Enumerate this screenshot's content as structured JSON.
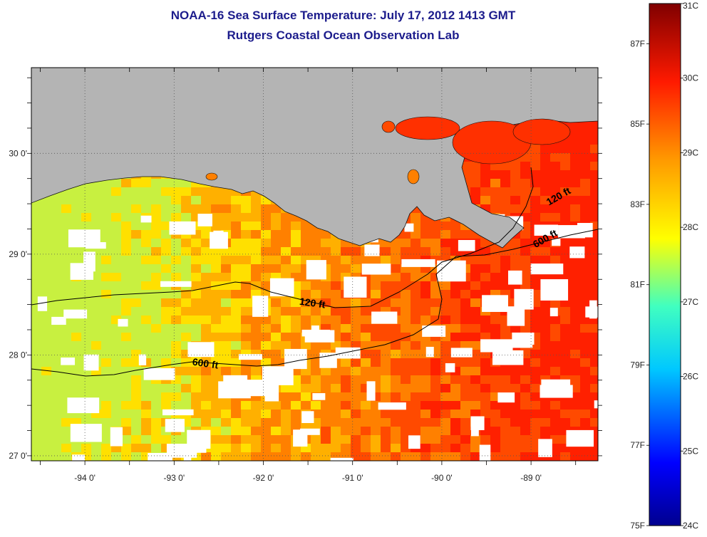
{
  "title": {
    "line1": "NOAA-16 Sea Surface Temperature:  July 17, 2012 1413 GMT",
    "line2": "Rutgers Coastal Ocean Observation Lab"
  },
  "map": {
    "lon_range": [
      -94.6,
      -88.25
    ],
    "lat_range": [
      26.95,
      30.85
    ],
    "lon_ticks": [
      {
        "value": -94,
        "label": "-94 0'"
      },
      {
        "value": -93,
        "label": "-93 0'"
      },
      {
        "value": -92,
        "label": "-92 0'"
      },
      {
        "value": -91,
        "label": "-91 0'"
      },
      {
        "value": -90,
        "label": "-90 0'"
      },
      {
        "value": -89,
        "label": "-89 0'"
      }
    ],
    "lat_ticks": [
      {
        "value": 30,
        "label": "30 0'"
      },
      {
        "value": 29,
        "label": "29 0'"
      },
      {
        "value": 28,
        "label": "28 0'"
      },
      {
        "value": 27,
        "label": "27 0'"
      }
    ],
    "contour_labels": [
      {
        "text": "120 ft",
        "lon": -88.8,
        "lat": 29.48
      },
      {
        "text": "600 ft",
        "lon": -88.95,
        "lat": 29.06
      },
      {
        "text": "120 ft",
        "lon": -91.6,
        "lat": 28.5
      },
      {
        "text": "600 ft",
        "lon": -92.8,
        "lat": 27.9
      }
    ],
    "colors": {
      "land": "#b4b4b4",
      "gap": "#ffffff",
      "contour": "#000000"
    }
  },
  "colorbar": {
    "celsius_range": [
      24,
      31
    ],
    "fahrenheit_range": [
      75,
      88
    ],
    "celsius_labels": [
      "31C",
      "30C",
      "29C",
      "28C",
      "27C",
      "26C",
      "25C",
      "24C"
    ],
    "fahrenheit_labels": [
      "87F",
      "85F",
      "83F",
      "81F",
      "79F",
      "77F",
      "75F"
    ]
  }
}
